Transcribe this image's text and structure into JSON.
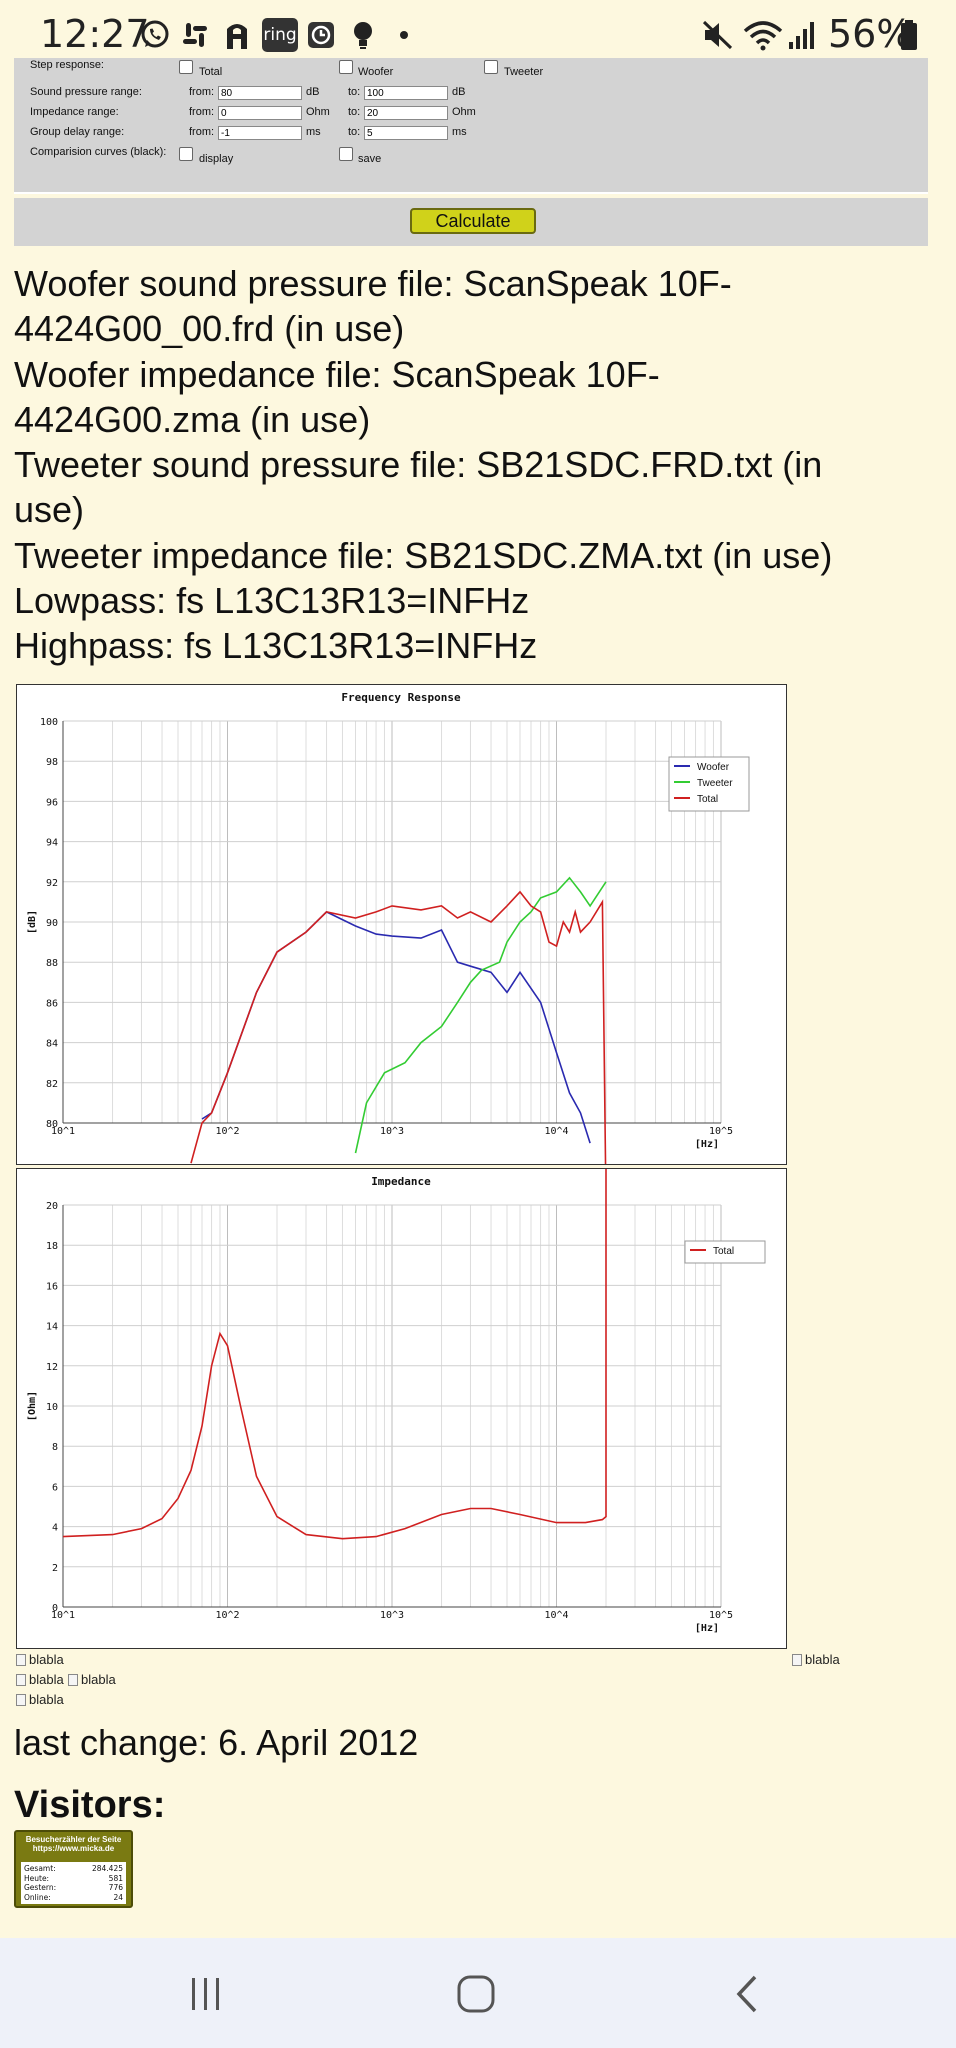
{
  "status_bar": {
    "time": "12:27",
    "apps": [
      "whatsapp-icon",
      "slack-icon",
      "a-app-icon",
      "ring-icon",
      "clock-icon",
      "bulb-icon",
      "dot-icon"
    ],
    "ring_label": "ring",
    "battery": "56%"
  },
  "form": {
    "step_response": {
      "label": "Step response:",
      "total": "Total",
      "woofer": "Woofer",
      "tweeter": "Tweeter"
    },
    "spl": {
      "label": "Sound pressure range:",
      "from_label": "from:",
      "from": "80",
      "unit1": "dB",
      "to_label": "to:",
      "to": "100",
      "unit2": "dB"
    },
    "imp": {
      "label": "Impedance range:",
      "from_label": "from:",
      "from": "0",
      "unit1": "Ohm",
      "to_label": "to:",
      "to": "20",
      "unit2": "Ohm"
    },
    "gd": {
      "label": "Group delay range:",
      "from_label": "from:",
      "from": "-1",
      "unit1": "ms",
      "to_label": "to:",
      "to": "5",
      "unit2": "ms"
    },
    "cmp": {
      "label": "Comparision curves (black):",
      "display": "display",
      "save": "save"
    },
    "calculate": "Calculate"
  },
  "info": [
    "Woofer sound pressure file: ScanSpeak 10F-",
    "4424G00_00.frd (in use)",
    "Woofer impedance file: ScanSpeak 10F-",
    "4424G00.zma (in use)",
    "Tweeter sound pressure file: SB21SDC.FRD.txt (in",
    "use)",
    "Tweeter impedance file: SB21SDC.ZMA.txt (in use)",
    "Lowpass: fs L13C13R13=INFHz",
    "Highpass: fs L13C13R13=INFHz"
  ],
  "chart_data": [
    {
      "type": "line",
      "title": "Frequency Response",
      "ylabel": "[dB]",
      "xlabel": "[Hz]",
      "x_scale": "log",
      "xlim": [
        10,
        100000
      ],
      "ylim": [
        80,
        100
      ],
      "y_ticks": [
        80,
        82,
        84,
        86,
        88,
        90,
        92,
        94,
        96,
        98,
        100
      ],
      "x_tick_labels": [
        "10^1",
        "10^2",
        "10^3",
        "10^4",
        "10^5"
      ],
      "legend_position": "top-right",
      "grid": true,
      "series": [
        {
          "name": "Woofer",
          "color": "#2a2ab0",
          "points": [
            [
              70,
              80.2
            ],
            [
              80,
              80.5
            ],
            [
              100,
              82.5
            ],
            [
              150,
              86.5
            ],
            [
              200,
              88.5
            ],
            [
              300,
              89.5
            ],
            [
              400,
              90.5
            ],
            [
              600,
              89.8
            ],
            [
              800,
              89.4
            ],
            [
              1000,
              89.3
            ],
            [
              1500,
              89.2
            ],
            [
              2000,
              89.6
            ],
            [
              2500,
              88.0
            ],
            [
              3000,
              87.8
            ],
            [
              4000,
              87.5
            ],
            [
              5000,
              86.5
            ],
            [
              6000,
              87.5
            ],
            [
              8000,
              86.0
            ],
            [
              10000,
              83.5
            ],
            [
              12000,
              81.5
            ],
            [
              14000,
              80.5
            ],
            [
              16000,
              79.0
            ]
          ]
        },
        {
          "name": "Tweeter",
          "color": "#33cc33",
          "points": [
            [
              600,
              78.5
            ],
            [
              700,
              81.0
            ],
            [
              900,
              82.5
            ],
            [
              1200,
              83.0
            ],
            [
              1500,
              84.0
            ],
            [
              2000,
              84.8
            ],
            [
              2500,
              86.0
            ],
            [
              3000,
              87.0
            ],
            [
              3500,
              87.6
            ],
            [
              4500,
              88.0
            ],
            [
              5000,
              89.0
            ],
            [
              6000,
              90.0
            ],
            [
              7000,
              90.5
            ],
            [
              8000,
              91.2
            ],
            [
              10000,
              91.5
            ],
            [
              12000,
              92.2
            ],
            [
              14000,
              91.5
            ],
            [
              16000,
              90.8
            ],
            [
              20000,
              92.0
            ]
          ]
        },
        {
          "name": "Total",
          "color": "#d02020",
          "points": [
            [
              60,
              78.0
            ],
            [
              70,
              80.0
            ],
            [
              80,
              80.5
            ],
            [
              100,
              82.5
            ],
            [
              150,
              86.5
            ],
            [
              200,
              88.5
            ],
            [
              300,
              89.5
            ],
            [
              400,
              90.5
            ],
            [
              600,
              90.2
            ],
            [
              800,
              90.5
            ],
            [
              1000,
              90.8
            ],
            [
              1500,
              90.6
            ],
            [
              2000,
              90.8
            ],
            [
              2500,
              90.2
            ],
            [
              3000,
              90.5
            ],
            [
              4000,
              90.0
            ],
            [
              5000,
              90.8
            ],
            [
              6000,
              91.5
            ],
            [
              7000,
              90.8
            ],
            [
              8000,
              90.5
            ],
            [
              9000,
              89.0
            ],
            [
              10000,
              88.8
            ],
            [
              11000,
              90.0
            ],
            [
              12000,
              89.5
            ],
            [
              13000,
              90.5
            ],
            [
              14000,
              89.5
            ],
            [
              16000,
              90.0
            ],
            [
              19000,
              91.0
            ],
            [
              20000,
              76.0
            ]
          ]
        }
      ]
    },
    {
      "type": "line",
      "title": "Impedance",
      "ylabel": "[Ohm]",
      "xlabel": "[Hz]",
      "x_scale": "log",
      "xlim": [
        10,
        100000
      ],
      "ylim": [
        0,
        20
      ],
      "y_ticks": [
        0,
        2,
        4,
        6,
        8,
        10,
        12,
        14,
        16,
        18,
        20
      ],
      "x_tick_labels": [
        "10^1",
        "10^2",
        "10^3",
        "10^4",
        "10^5"
      ],
      "legend_position": "top-right",
      "grid": true,
      "series": [
        {
          "name": "Total",
          "color": "#d02020",
          "points": [
            [
              10,
              3.5
            ],
            [
              20,
              3.6
            ],
            [
              30,
              3.9
            ],
            [
              40,
              4.4
            ],
            [
              50,
              5.4
            ],
            [
              60,
              6.8
            ],
            [
              70,
              9.0
            ],
            [
              80,
              12.0
            ],
            [
              90,
              13.6
            ],
            [
              100,
              13.0
            ],
            [
              120,
              10.0
            ],
            [
              150,
              6.5
            ],
            [
              200,
              4.5
            ],
            [
              300,
              3.6
            ],
            [
              500,
              3.4
            ],
            [
              800,
              3.5
            ],
            [
              1200,
              3.9
            ],
            [
              2000,
              4.6
            ],
            [
              3000,
              4.9
            ],
            [
              4000,
              4.9
            ],
            [
              6000,
              4.6
            ],
            [
              10000,
              4.2
            ],
            [
              15000,
              4.2
            ],
            [
              19000,
              4.35
            ],
            [
              20000,
              4.5
            ],
            [
              20000,
              22.0
            ]
          ]
        }
      ]
    }
  ],
  "blabla": "blabla",
  "last_change": "last change: 6. April 2012",
  "visitors": "Visitors:",
  "counter": {
    "header1": "Besucherzähler der Seite",
    "header2": "https://www.micka.de",
    "rows": [
      {
        "label": "Gesamt:",
        "value": "284.425"
      },
      {
        "label": "Heute:",
        "value": "581"
      },
      {
        "label": "Gestern:",
        "value": "776"
      },
      {
        "label": "Online:",
        "value": "24"
      }
    ]
  }
}
